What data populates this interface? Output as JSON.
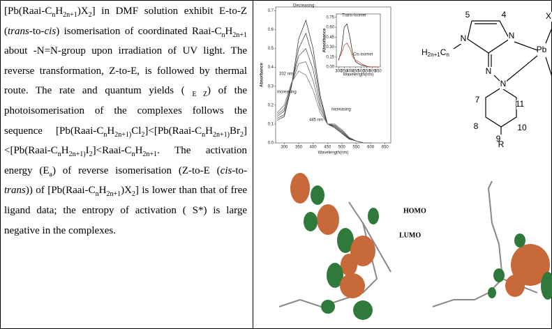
{
  "text": {
    "runs": [
      {
        "text": "[Pb(Raai-C"
      },
      {
        "text": "n",
        "style": "sub"
      },
      {
        "text": "H"
      },
      {
        "text": "2n+1",
        "style": "sub"
      },
      {
        "text": ")X"
      },
      {
        "text": "2",
        "style": "sub"
      },
      {
        "text": "] in DMF solution exhibit E-to-Z ("
      },
      {
        "text": "trans",
        "style": "italic"
      },
      {
        "text": "-to-"
      },
      {
        "text": "cis",
        "style": "italic"
      },
      {
        "text": ") isomerisation of coordinated Raai-C"
      },
      {
        "text": "n",
        "style": "sub"
      },
      {
        "text": "H"
      },
      {
        "text": "2n+1",
        "style": "sub"
      },
      {
        "text": " about -N=N-group upon irradiation of UV light. The reverse transformation, Z-to-E, is followed by thermal route. The rate and quantum yields ( "
      },
      {
        "text": "E  Z",
        "style": "sub"
      },
      {
        "text": ") of the photoisomerisation of the complexes follows the sequence [Pb(Raai-C"
      },
      {
        "text": "n",
        "style": "sub"
      },
      {
        "text": "H"
      },
      {
        "text": "2n+1)",
        "style": "sub"
      },
      {
        "text": "Cl"
      },
      {
        "text": "2",
        "style": "sub"
      },
      {
        "text": "]<[Pb(Raai-C"
      },
      {
        "text": "n",
        "style": "sub"
      },
      {
        "text": "H"
      },
      {
        "text": "2n+1)",
        "style": "sub"
      },
      {
        "text": "Br"
      },
      {
        "text": "2",
        "style": "sub"
      },
      {
        "text": "]<[Pb(Raai-C"
      },
      {
        "text": "n",
        "style": "sub"
      },
      {
        "text": "H"
      },
      {
        "text": "2n+1)",
        "style": "sub"
      },
      {
        "text": "I"
      },
      {
        "text": "2",
        "style": "sub"
      },
      {
        "text": "]<Raai-C"
      },
      {
        "text": "n",
        "style": "sub"
      },
      {
        "text": "H"
      },
      {
        "text": "2n+1",
        "style": "sub"
      },
      {
        "text": ". The activation energy (E"
      },
      {
        "text": "a",
        "style": "sub"
      },
      {
        "text": ") of reverse isomerisation (Z-to-E ("
      },
      {
        "text": "cis",
        "style": "italic"
      },
      {
        "text": "-to-"
      },
      {
        "text": "trans",
        "style": "italic"
      },
      {
        "text": ")) of [Pb(Raai-C"
      },
      {
        "text": "n",
        "style": "sub"
      },
      {
        "text": "H"
      },
      {
        "text": "2n+1",
        "style": "sub"
      },
      {
        "text": ")X"
      },
      {
        "text": "2",
        "style": "sub"
      },
      {
        "text": "] is lower than that of free ligand data; the entropy of activation ( S*) is large negative in the complexes."
      }
    ]
  },
  "chart_data": [
    {
      "type": "line",
      "xlabel": "Wavelength(nm)",
      "ylabel": "Absorbance",
      "x": [
        275,
        300,
        325,
        350,
        375,
        400,
        425,
        450,
        475,
        500,
        525,
        550,
        575,
        600
      ],
      "xlim": [
        270,
        670
      ],
      "ylim": [
        0,
        0.72
      ],
      "xticks": [
        300,
        350,
        400,
        450,
        500,
        550,
        600,
        650
      ],
      "yticks": [
        {
          "value": 0,
          "label": "0.0"
        },
        0.1,
        0.2,
        0.3,
        0.4,
        0.5,
        0.6,
        0.7
      ],
      "series": [
        {
          "color": "#222",
          "values": [
            0.12,
            0.14,
            0.3,
            0.55,
            0.65,
            0.5,
            0.25,
            0.1,
            0.08,
            0.05,
            0.02,
            0.01,
            0,
            0
          ]
        },
        {
          "color": "#333",
          "values": [
            0.13,
            0.15,
            0.3,
            0.5,
            0.58,
            0.45,
            0.23,
            0.1,
            0.085,
            0.055,
            0.022,
            0.01,
            0,
            0
          ]
        },
        {
          "color": "#444",
          "values": [
            0.14,
            0.17,
            0.31,
            0.46,
            0.5,
            0.39,
            0.2,
            0.1,
            0.09,
            0.06,
            0.025,
            0.01,
            0,
            0
          ]
        },
        {
          "color": "#555",
          "values": [
            0.15,
            0.18,
            0.31,
            0.42,
            0.43,
            0.33,
            0.18,
            0.1,
            0.095,
            0.065,
            0.028,
            0.01,
            0,
            0
          ]
        },
        {
          "color": "#666",
          "values": [
            0.16,
            0.2,
            0.32,
            0.38,
            0.36,
            0.28,
            0.16,
            0.1,
            0.1,
            0.07,
            0.03,
            0.01,
            0,
            0
          ]
        }
      ],
      "annotations": [
        "Decreasing",
        "332 nm",
        "Increasing",
        "445 nm",
        "Increasing"
      ]
    },
    {
      "type": "line",
      "xlabel": "Wavelength(nm)",
      "ylabel": "Absorbance",
      "x": [
        300,
        325,
        350,
        375,
        400,
        425,
        450,
        475,
        500,
        525,
        550,
        575,
        600,
        625,
        650
      ],
      "xlim": [
        280,
        670
      ],
      "ylim": [
        0,
        0.8
      ],
      "xticks": [
        300,
        350,
        400,
        450,
        500,
        550,
        600,
        650
      ],
      "yticks": [
        {
          "value": 0,
          "label": "0.00"
        },
        0.15,
        {
          "value": 0.3,
          "label": "0.30"
        },
        0.45,
        {
          "value": 0.6,
          "label": "0.60"
        },
        0.75
      ],
      "series": [
        {
          "color": "#111",
          "values": [
            0.1,
            0.25,
            0.6,
            0.65,
            0.45,
            0.2,
            0.08,
            0.05,
            0.03,
            0.02,
            0.01,
            0,
            0,
            0,
            0
          ]
        },
        {
          "color": "#c0392b",
          "values": [
            0.12,
            0.2,
            0.33,
            0.36,
            0.28,
            0.15,
            0.1,
            0.08,
            0.05,
            0.03,
            0.01,
            0,
            0,
            0,
            0
          ]
        }
      ],
      "annotations": [
        "Trans-isomer",
        "Cis-isomer"
      ]
    }
  ],
  "structure": {
    "chain": [
      {
        "text": "H"
      },
      {
        "text": "2n+1",
        "style": "sub"
      },
      {
        "text": "C"
      },
      {
        "text": "n",
        "style": "sub"
      }
    ],
    "labels": [
      "5",
      "4",
      "N",
      "N",
      "Pb",
      "N",
      "N",
      "7",
      "11",
      "8",
      "10",
      "9",
      "R",
      "X"
    ]
  },
  "orbitals": {
    "labels": [
      "HOMO",
      "LUMO"
    ]
  }
}
